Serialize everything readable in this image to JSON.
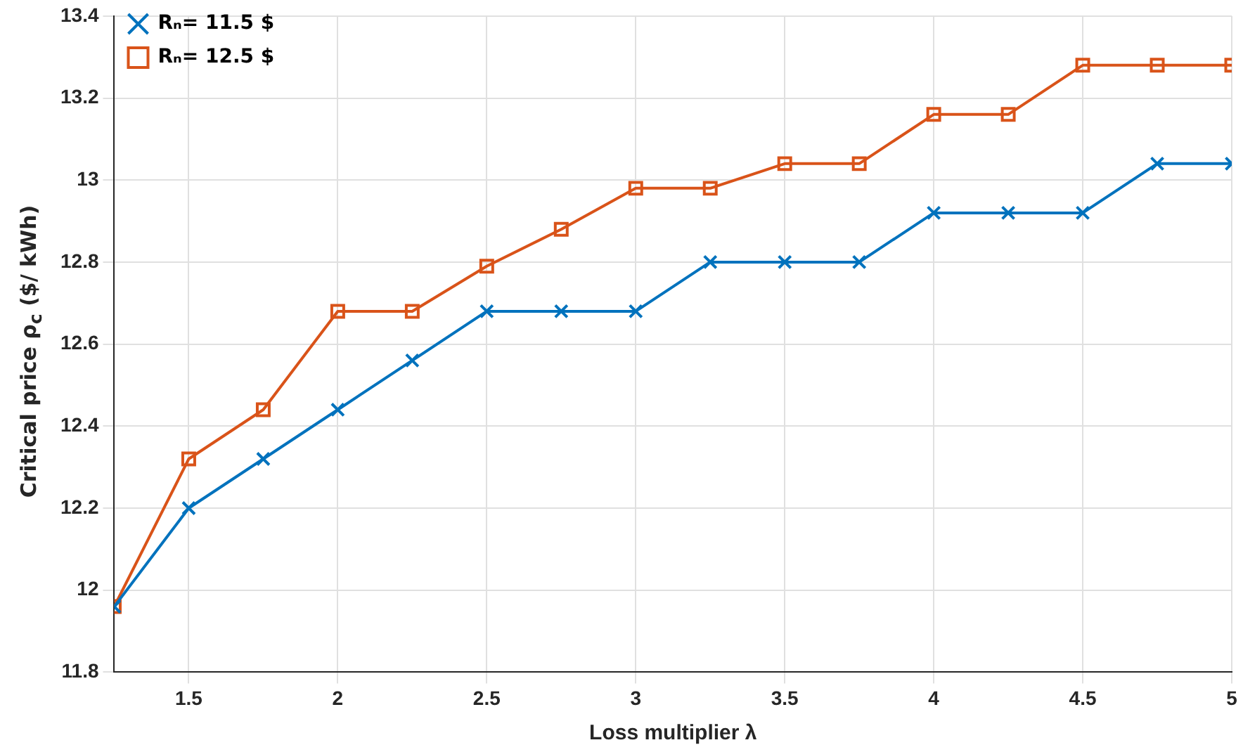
{
  "chart_data": {
    "type": "line",
    "xlabel": "Loss multiplier λ",
    "ylabel": "Critical price ρ$_{c}$  ($/ kWh)",
    "x": [
      1.25,
      1.5,
      1.75,
      2,
      2.25,
      2.5,
      2.75,
      3,
      3.25,
      3.5,
      3.75,
      4,
      4.25,
      4.5,
      4.75,
      5
    ],
    "series": [
      {
        "name": "Rₙ= 11.5 $",
        "color": "#0072bd",
        "marker": "cross",
        "values": [
          11.96,
          12.2,
          12.32,
          12.44,
          12.56,
          12.68,
          12.68,
          12.68,
          12.8,
          12.8,
          12.8,
          12.92,
          12.92,
          12.92,
          13.04,
          13.04
        ]
      },
      {
        "name": "Rₙ= 12.5 $",
        "color": "#d95319",
        "marker": "square",
        "values": [
          11.96,
          12.32,
          12.44,
          12.68,
          12.68,
          12.79,
          12.88,
          12.98,
          12.98,
          13.04,
          13.04,
          13.16,
          13.16,
          13.28,
          13.28,
          13.28
        ]
      }
    ],
    "xlim": [
      1.25,
      5
    ],
    "xticks": [
      1.5,
      2,
      2.5,
      3,
      3.5,
      4,
      4.5,
      5
    ],
    "ylim": [
      11.8,
      13.4
    ],
    "yticks": [
      11.8,
      12,
      12.2,
      12.4,
      12.6,
      12.8,
      13,
      13.2,
      13.4
    ],
    "grid": true,
    "legend": "top left",
    "line_style": "solid"
  }
}
